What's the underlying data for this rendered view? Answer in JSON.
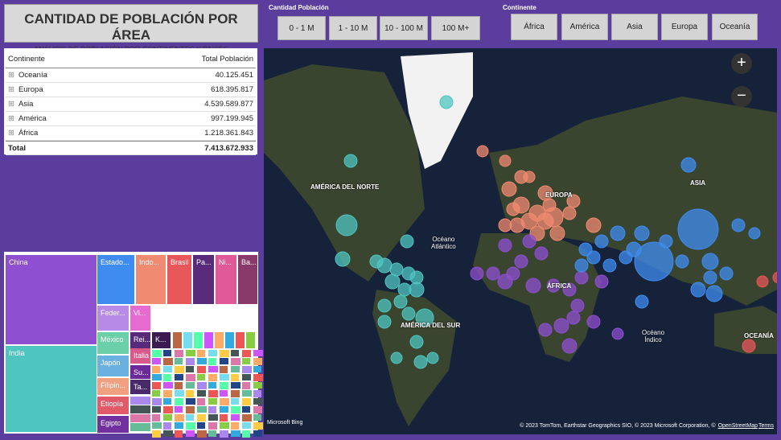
{
  "header": {
    "title": "CANTIDAD DE POBLACIÓN POR ÁREA",
    "subtitle": "ANÁLISIS DE POBLACIÓN POR CONTINENTES Y PAISES"
  },
  "filters": [
    {
      "label": "Cantidad Población",
      "options": [
        "0 - 1 M",
        "1 - 10 M",
        "10 - 100 M",
        "100 M+"
      ]
    },
    {
      "label": "Continente",
      "options": [
        "África",
        "América",
        "Asia",
        "Europa",
        "Oceanía"
      ]
    }
  ],
  "table": {
    "columns": [
      "Continente",
      "Total Población"
    ],
    "rows": [
      [
        "Oceanía",
        "40.125.451"
      ],
      [
        "Europa",
        "618.395.817"
      ],
      [
        "Asia",
        "4.539.589.877"
      ],
      [
        "América",
        "997.199.945"
      ],
      [
        "África",
        "1.218.361.843"
      ]
    ],
    "total": [
      "Total",
      "7.413.672.933"
    ]
  },
  "treemap": {
    "tiles": [
      "China",
      "India",
      "Estado...",
      "Indo...",
      "Brasil",
      "Pa...",
      "Ni...",
      "Ba...",
      "Feder...",
      "Vi...",
      "México",
      "Japón",
      "Filipin...",
      "Etiopía",
      "Egipto",
      "Rei...",
      "K...",
      "Italia",
      "Su...",
      "Ta..."
    ]
  },
  "map": {
    "labels": [
      "AMÉRICA DEL NORTE",
      [
        "Océano",
        "Atlántico"
      ],
      "EUROPA",
      "ASIA",
      "ÁFRICA",
      "AMÉRICA DEL SUR",
      [
        "Océano",
        "Índico"
      ],
      "OCEANÍA"
    ],
    "logo": "Microsoft Bing",
    "attribution": "© 2023 TomTom, Earthstar Geographics SIO, © 2023 Microsoft Corporation, ©",
    "osm": "OpenStreetMap",
    "terms": "Terms"
  }
}
